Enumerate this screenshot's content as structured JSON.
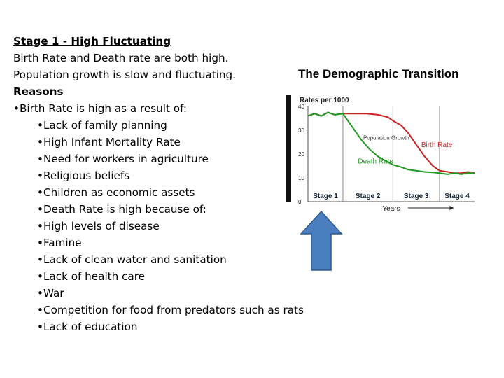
{
  "text": {
    "heading": "Stage 1 - High Fluctuating",
    "line1": "Birth Rate and Death rate are both high.",
    "line2": "Population growth is slow and fluctuating.",
    "reasons": "Reasons",
    "birth_intro": "•Birth Rate is high as a result of:",
    "birth_items": [
      "•Lack of family planning",
      "•High Infant Mortality Rate",
      "•Need for workers in agriculture",
      "•Religious beliefs",
      "•Children as economic assets"
    ],
    "death_intro": "•Death Rate is high because of:",
    "death_items": [
      "•High levels of disease",
      "•Famine",
      "•Lack of clean water and sanitation",
      "•Lack of health care",
      "•War",
      "•Competition for food from predators such as rats",
      "•Lack of education"
    ]
  },
  "figure_title": "The Demographic Transition",
  "chart_data": {
    "type": "line",
    "title": "The Demographic Transition",
    "ylabel": "Rates per 1000",
    "xlabel": "Years",
    "yticks": [
      "0",
      "10",
      "20",
      "30",
      "40"
    ],
    "ylim": [
      0,
      40
    ],
    "xlim": [
      0,
      100
    ],
    "stages": [
      "Stage 1",
      "Stage 2",
      "Stage 3",
      "Stage 4"
    ],
    "stage_boundaries": [
      21,
      51,
      79
    ],
    "annotations": [
      "Population Growth"
    ],
    "series": [
      {
        "name": "Birth Rate",
        "color": "#cc2222",
        "x": [
          0,
          4,
          8,
          12,
          16,
          21,
          28,
          35,
          42,
          48,
          51,
          56,
          60,
          65,
          70,
          75,
          79,
          84,
          88,
          92,
          96,
          100
        ],
        "y": [
          36,
          37,
          36,
          37.5,
          36.5,
          37,
          37,
          37,
          36.5,
          35.5,
          34,
          32,
          29,
          24,
          19,
          15,
          13,
          12.5,
          12,
          12,
          12.5,
          12
        ]
      },
      {
        "name": "Death Rate",
        "color": "#229922",
        "x": [
          0,
          4,
          8,
          12,
          16,
          21,
          24,
          28,
          32,
          37,
          42,
          47,
          51,
          56,
          60,
          65,
          70,
          75,
          79,
          84,
          88,
          92,
          96,
          100
        ],
        "y": [
          36,
          37,
          36,
          37.5,
          36.5,
          37,
          34,
          30,
          26,
          22,
          19,
          17,
          15.5,
          14.5,
          13.5,
          13,
          12.5,
          12.3,
          12,
          11.5,
          12,
          11.5,
          12,
          12
        ]
      }
    ],
    "grid": false,
    "legend": "inline labels"
  },
  "colors": {
    "arrow_fill": "#4a7ebf",
    "arrow_stroke": "#2f5a90"
  }
}
